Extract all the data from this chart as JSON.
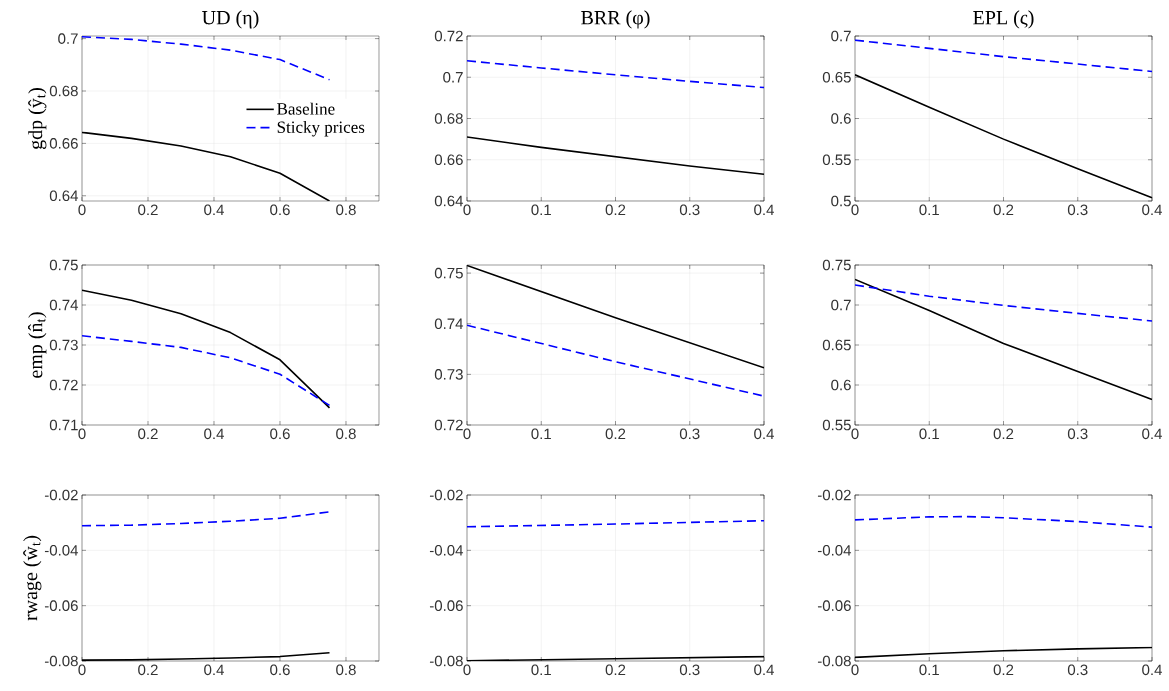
{
  "chart_data": [
    {
      "type": "line",
      "title": "UD (η)",
      "ylabel": "gdp (ŷ$_{t}$)",
      "xlim": [
        0,
        0.9
      ],
      "xticks": [
        0,
        0.2,
        0.4,
        0.6,
        0.8
      ],
      "ylim": [
        0.638,
        0.701
      ],
      "yticks": [
        0.64,
        0.66,
        0.68,
        0.7
      ],
      "grid": true,
      "legend": "right",
      "series": [
        {
          "name": "Baseline",
          "color": "#000000",
          "line_style": "solid",
          "x": [
            0,
            0.15,
            0.3,
            0.45,
            0.6,
            0.75
          ],
          "values": [
            0.6642,
            0.6619,
            0.659,
            0.6549,
            0.6486,
            0.638
          ]
        },
        {
          "name": "Sticky prices",
          "color": "#0000ff",
          "line_style": "dashed",
          "x": [
            0,
            0.15,
            0.3,
            0.45,
            0.6,
            0.75
          ],
          "values": [
            0.7007,
            0.6997,
            0.6979,
            0.6956,
            0.692,
            0.6843
          ]
        }
      ]
    },
    {
      "type": "line",
      "title": "BRR (φ)",
      "xlim": [
        0,
        0.4
      ],
      "xticks": [
        0,
        0.1,
        0.2,
        0.3,
        0.4
      ],
      "ylim": [
        0.64,
        0.72
      ],
      "yticks": [
        0.64,
        0.66,
        0.68,
        0.7,
        0.72
      ],
      "grid": true,
      "series": [
        {
          "color": "#000000",
          "line_style": "solid",
          "x": [
            0,
            0.1,
            0.2,
            0.3,
            0.4
          ],
          "values": [
            0.671,
            0.666,
            0.6615,
            0.657,
            0.653
          ]
        },
        {
          "color": "#0000ff",
          "line_style": "dashed",
          "x": [
            0,
            0.1,
            0.2,
            0.3,
            0.4
          ],
          "values": [
            0.708,
            0.7045,
            0.7012,
            0.698,
            0.695
          ]
        }
      ]
    },
    {
      "type": "line",
      "title": "EPL (ς)",
      "xlim": [
        0,
        0.4
      ],
      "xticks": [
        0,
        0.1,
        0.2,
        0.3,
        0.4
      ],
      "ylim": [
        0.5,
        0.7
      ],
      "yticks": [
        0.5,
        0.55,
        0.6,
        0.65,
        0.7
      ],
      "grid": true,
      "series": [
        {
          "color": "#000000",
          "line_style": "solid",
          "x": [
            0,
            0.1,
            0.2,
            0.3,
            0.4
          ],
          "values": [
            0.653,
            0.6136,
            0.575,
            0.539,
            0.504
          ]
        },
        {
          "color": "#0000ff",
          "line_style": "dashed",
          "x": [
            0,
            0.1,
            0.2,
            0.3,
            0.4
          ],
          "values": [
            0.695,
            0.685,
            0.675,
            0.666,
            0.657
          ]
        }
      ]
    },
    {
      "type": "line",
      "ylabel": "emp (n̂$_{t}$)",
      "xlim": [
        0,
        0.9
      ],
      "xticks": [
        0,
        0.2,
        0.4,
        0.6,
        0.8
      ],
      "ylim": [
        0.71,
        0.75
      ],
      "yticks": [
        0.71,
        0.72,
        0.73,
        0.74,
        0.75
      ],
      "grid": true,
      "series": [
        {
          "color": "#000000",
          "line_style": "solid",
          "x": [
            0,
            0.15,
            0.3,
            0.45,
            0.6,
            0.75
          ],
          "values": [
            0.7437,
            0.7412,
            0.7378,
            0.7331,
            0.7263,
            0.7143
          ]
        },
        {
          "color": "#0000ff",
          "line_style": "dashed",
          "x": [
            0,
            0.15,
            0.3,
            0.45,
            0.6,
            0.75
          ],
          "values": [
            0.7323,
            0.7309,
            0.7294,
            0.7268,
            0.7227,
            0.7149
          ]
        }
      ]
    },
    {
      "type": "line",
      "xlim": [
        0,
        0.4
      ],
      "xticks": [
        0,
        0.1,
        0.2,
        0.3,
        0.4
      ],
      "ylim": [
        0.72,
        0.7516
      ],
      "yticks": [
        0.72,
        0.73,
        0.74,
        0.75
      ],
      "grid": true,
      "series": [
        {
          "color": "#000000",
          "line_style": "solid",
          "x": [
            0,
            0.2,
            0.4
          ],
          "values": [
            0.7515,
            0.7412,
            0.7313
          ]
        },
        {
          "color": "#0000ff",
          "line_style": "dashed",
          "x": [
            0,
            0.2,
            0.4
          ],
          "values": [
            0.7397,
            0.7325,
            0.7257
          ]
        }
      ]
    },
    {
      "type": "line",
      "xlim": [
        0,
        0.4
      ],
      "xticks": [
        0,
        0.1,
        0.2,
        0.3,
        0.4
      ],
      "ylim": [
        0.55,
        0.75
      ],
      "yticks": [
        0.55,
        0.6,
        0.65,
        0.7,
        0.75
      ],
      "grid": true,
      "series": [
        {
          "color": "#000000",
          "line_style": "solid",
          "x": [
            0,
            0.1,
            0.2,
            0.3,
            0.4
          ],
          "values": [
            0.732,
            0.693,
            0.652,
            0.617,
            0.582
          ]
        },
        {
          "color": "#0000ff",
          "line_style": "dashed",
          "x": [
            0,
            0.1,
            0.2,
            0.3,
            0.4
          ],
          "values": [
            0.725,
            0.711,
            0.6995,
            0.6895,
            0.68
          ]
        }
      ]
    },
    {
      "type": "line",
      "ylabel": "rwage (ŵ$_{t}$)",
      "xlim": [
        0,
        0.9
      ],
      "xticks": [
        0,
        0.2,
        0.4,
        0.6,
        0.8
      ],
      "ylim": [
        -0.08,
        -0.02
      ],
      "yticks": [
        -0.08,
        -0.06,
        -0.04,
        -0.02
      ],
      "grid": true,
      "series": [
        {
          "color": "#000000",
          "line_style": "solid",
          "x": [
            0,
            0.15,
            0.3,
            0.45,
            0.6,
            0.75
          ],
          "values": [
            -0.0797,
            -0.0796,
            -0.0793,
            -0.0789,
            -0.0784,
            -0.077
          ]
        },
        {
          "color": "#0000ff",
          "line_style": "dashed",
          "x": [
            0,
            0.15,
            0.3,
            0.45,
            0.6,
            0.75
          ],
          "values": [
            -0.0311,
            -0.0309,
            -0.0303,
            -0.0295,
            -0.0284,
            -0.0261
          ]
        }
      ]
    },
    {
      "type": "line",
      "xlim": [
        0,
        0.4
      ],
      "xticks": [
        0,
        0.1,
        0.2,
        0.3,
        0.4
      ],
      "ylim": [
        -0.08,
        -0.02
      ],
      "yticks": [
        -0.08,
        -0.06,
        -0.04,
        -0.02
      ],
      "grid": true,
      "series": [
        {
          "color": "#000000",
          "line_style": "solid",
          "x": [
            0,
            0.2,
            0.4
          ],
          "values": [
            -0.0799,
            -0.0792,
            -0.0784
          ]
        },
        {
          "color": "#0000ff",
          "line_style": "dashed",
          "x": [
            0,
            0.2,
            0.4
          ],
          "values": [
            -0.0315,
            -0.0305,
            -0.0293
          ]
        }
      ]
    },
    {
      "type": "line",
      "xlim": [
        0,
        0.4
      ],
      "xticks": [
        0,
        0.1,
        0.2,
        0.3,
        0.4
      ],
      "ylim": [
        -0.08,
        -0.02
      ],
      "yticks": [
        -0.08,
        -0.06,
        -0.04,
        -0.02
      ],
      "grid": true,
      "series": [
        {
          "color": "#000000",
          "line_style": "solid",
          "x": [
            0,
            0.1,
            0.2,
            0.3,
            0.4
          ],
          "values": [
            -0.0787,
            -0.0774,
            -0.0763,
            -0.0756,
            -0.0751
          ]
        },
        {
          "color": "#0000ff",
          "line_style": "dashed",
          "x": [
            0,
            0.1,
            0.15,
            0.2,
            0.3,
            0.4
          ],
          "values": [
            -0.029,
            -0.0279,
            -0.0278,
            -0.0282,
            -0.0296,
            -0.0316
          ]
        }
      ]
    }
  ]
}
